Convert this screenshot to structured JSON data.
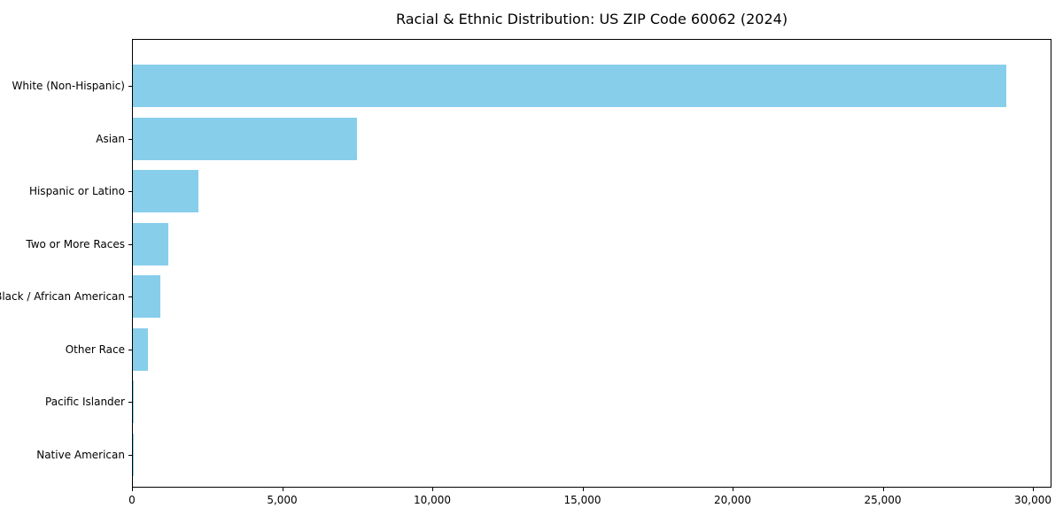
{
  "title": "Racial & Ethnic Distribution: US ZIP Code 60062 (2024)",
  "chart_data": {
    "type": "bar",
    "orientation": "horizontal",
    "title": "Racial & Ethnic Distribution: US ZIP Code 60062 (2024)",
    "categories": [
      "White (Non-Hispanic)",
      "Asian",
      "Hispanic or Latino",
      "Two or More Races",
      "Black / African American",
      "Other Race",
      "Pacific Islander",
      "Native American"
    ],
    "values": [
      29100,
      7450,
      2170,
      1170,
      910,
      500,
      15,
      5
    ],
    "xlabel": "",
    "ylabel": "",
    "xlim": [
      0,
      30600
    ],
    "x_ticks": [
      0,
      5000,
      10000,
      15000,
      20000,
      25000,
      30000
    ],
    "x_tick_labels": [
      "0",
      "5,000",
      "10,000",
      "15,000",
      "20,000",
      "25,000",
      "30,000"
    ],
    "bar_color": "#87CEEB",
    "axis_color": "#000000",
    "background_color": "#ffffff",
    "grid": false,
    "legend": null,
    "sort_order": "descending-top-to-bottom"
  }
}
